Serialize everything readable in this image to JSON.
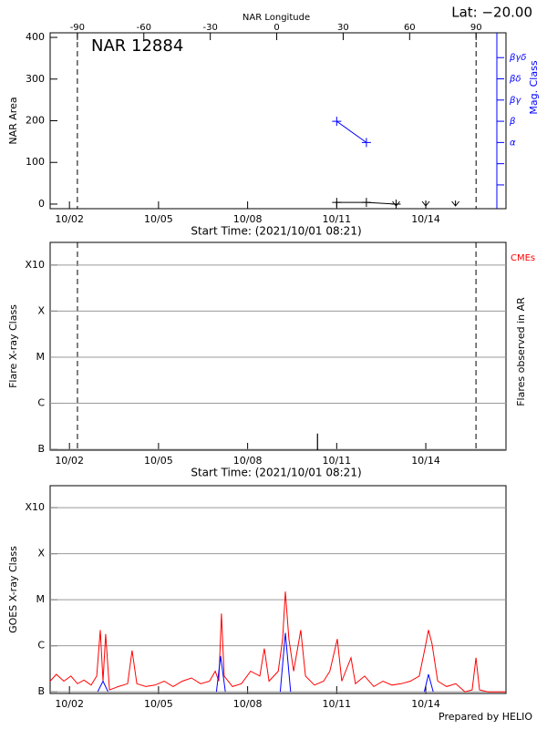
{
  "chart_data": [
    {
      "type": "line",
      "title": "NAR 12884",
      "subtitle": "Lat: −20.00",
      "x_label": "Start Time: (2021/10/01 08:21)",
      "x2_label": "NAR Longitude",
      "y_label": "NAR Area",
      "y2_label": "Mag. Class",
      "xlim": [
        0.35,
        15.7
      ],
      "xticks": [
        {
          "value": 1,
          "label": "10/02"
        },
        {
          "value": 4,
          "label": "10/05"
        },
        {
          "value": 7,
          "label": "10/08"
        },
        {
          "value": 10,
          "label": "10/11"
        },
        {
          "value": 13,
          "label": "10/14"
        }
      ],
      "x2lim": [
        -102.3,
        103.5
      ],
      "x2ticks": [
        -90,
        -60,
        -30,
        0,
        30,
        60,
        90
      ],
      "ylim": [
        -11,
        411
      ],
      "yticks": [
        0,
        100,
        200,
        300,
        400
      ],
      "y2lim": [
        -1.12,
        7.17
      ],
      "y2ticks": [
        {
          "value": 0,
          "label": null
        },
        {
          "value": 1,
          "label": null
        },
        {
          "value": 2,
          "label": "α"
        },
        {
          "value": 3,
          "label": "β"
        },
        {
          "value": 4,
          "label": "βγ"
        },
        {
          "value": 5,
          "label": "βδ"
        },
        {
          "value": 6,
          "label": "βγδ"
        }
      ],
      "y2_color": "#0000ff",
      "limbs_x2": [
        -90,
        90
      ],
      "series": [
        {
          "color": "#000000",
          "x": [
            10,
            11,
            12
          ],
          "values": [
            4,
            4,
            0
          ],
          "marker": "+"
        },
        {
          "color": "#0000ff",
          "axis": "y2",
          "x": [
            10,
            11
          ],
          "values": [
            3,
            2
          ],
          "marker": "+"
        }
      ],
      "off_disk_x": [
        12,
        13,
        14
      ]
    },
    {
      "type": "bar",
      "x_label": "Start Time: (2021/10/01 08:21)",
      "y_label": "Flare X-ray Class",
      "y2_label": "Flares observed in AR",
      "annotation": "CMEs",
      "annotation_color": "#ff0000",
      "xlim": [
        0.35,
        15.7
      ],
      "xticks": [
        {
          "value": 1,
          "label": "10/02"
        },
        {
          "value": 4,
          "label": "10/05"
        },
        {
          "value": 7,
          "label": "10/08"
        },
        {
          "value": 10,
          "label": "10/11"
        },
        {
          "value": 13,
          "label": "10/14"
        }
      ],
      "log": true,
      "ylim": [
        9.6e-08,
        0.0031
      ],
      "yticks": [
        {
          "value": 1e-07,
          "label": "B"
        },
        {
          "value": 1e-06,
          "label": "C"
        },
        {
          "value": 1e-05,
          "label": "M"
        },
        {
          "value": 0.0001,
          "label": "X"
        },
        {
          "value": 0.001,
          "label": "X10"
        }
      ],
      "grid": true,
      "limbs_x": [
        1.27,
        14.69
      ],
      "x": [
        9.35
      ],
      "values": [
        2.2e-07
      ],
      "color": "#000000"
    },
    {
      "type": "line",
      "y_label": "GOES X-ray Class",
      "footer": "Prepared by HELIO",
      "xlim": [
        0.35,
        15.7
      ],
      "xticks": [
        {
          "value": 1,
          "label": "10/02"
        },
        {
          "value": 4,
          "label": "10/05"
        },
        {
          "value": 7,
          "label": "10/08"
        },
        {
          "value": 10,
          "label": "10/11"
        },
        {
          "value": 13,
          "label": "10/14"
        }
      ],
      "log": true,
      "ylim": [
        9.2e-08,
        0.003
      ],
      "yticks": [
        {
          "value": 1e-07,
          "label": "B"
        },
        {
          "value": 1e-06,
          "label": "C"
        },
        {
          "value": 1e-05,
          "label": "M"
        },
        {
          "value": 0.0001,
          "label": "X"
        },
        {
          "value": 0.001,
          "label": "X10"
        }
      ],
      "grid": true,
      "series": [
        {
          "color": "#ff0000",
          "x": [
            0.35,
            0.56,
            0.81,
            1.05,
            1.27,
            1.49,
            1.73,
            1.92,
            2.04,
            2.13,
            2.22,
            2.35,
            2.65,
            2.96,
            3.11,
            3.27,
            3.57,
            3.88,
            4.19,
            4.49,
            4.8,
            5.11,
            5.42,
            5.72,
            5.91,
            6.03,
            6.12,
            6.21,
            6.49,
            6.79,
            7.1,
            7.41,
            7.56,
            7.72,
            8.03,
            8.18,
            8.27,
            8.39,
            8.55,
            8.79,
            8.95,
            9.25,
            9.56,
            9.77,
            10.02,
            10.17,
            10.48,
            10.63,
            10.94,
            11.25,
            11.56,
            11.86,
            12.17,
            12.48,
            12.78,
            12.97,
            13.09,
            13.21,
            13.4,
            13.7,
            14.01,
            14.32,
            14.56,
            14.69,
            14.81,
            15.09,
            15.39,
            15.7
          ],
          "values": [
            1.7e-07,
            2.4e-07,
            1.7e-07,
            2.2e-07,
            1.5e-07,
            1.8e-07,
            1.4e-07,
            2.2e-07,
            2.2e-06,
            1.7e-07,
            1.8e-06,
            1.1e-07,
            1.3e-07,
            1.5e-07,
            7.9e-07,
            1.5e-07,
            1.3e-07,
            1.4e-07,
            1.7e-07,
            1.3e-07,
            1.7e-07,
            2e-07,
            1.5e-07,
            1.7e-07,
            2.8e-07,
            1.7e-07,
            5e-06,
            2.2e-07,
            1.3e-07,
            1.5e-07,
            2.8e-07,
            2.2e-07,
            8.7e-07,
            1.7e-07,
            2.8e-07,
            1.4e-06,
            1.5e-05,
            1.4e-06,
            2.8e-07,
            2.2e-06,
            2.2e-07,
            1.4e-07,
            1.7e-07,
            2.8e-07,
            1.4e-06,
            1.7e-07,
            5.5e-07,
            1.5e-07,
            2.2e-07,
            1.3e-07,
            1.7e-07,
            1.4e-07,
            1.5e-07,
            1.7e-07,
            2.2e-07,
            8.7e-07,
            2.2e-06,
            1.1e-06,
            1.7e-07,
            1.3e-07,
            1.5e-07,
            1e-07,
            1.1e-07,
            5.5e-07,
            1.1e-07,
            1e-07,
            1e-07,
            1e-07
          ]
        },
        {
          "color": "#0000ff",
          "x": [
            1.95,
            2.13,
            2.3,
            4.0,
            5.95,
            6.09,
            6.25,
            7.0,
            8.1,
            8.27,
            8.45,
            11.0,
            12.95,
            13.09,
            13.25
          ],
          "values": [
            1e-07,
            1.7e-07,
            1e-07,
            null,
            1e-07,
            6e-07,
            1e-07,
            null,
            1e-07,
            1.9e-06,
            1e-07,
            null,
            1e-07,
            2.4e-07,
            1e-07
          ]
        }
      ]
    }
  ]
}
